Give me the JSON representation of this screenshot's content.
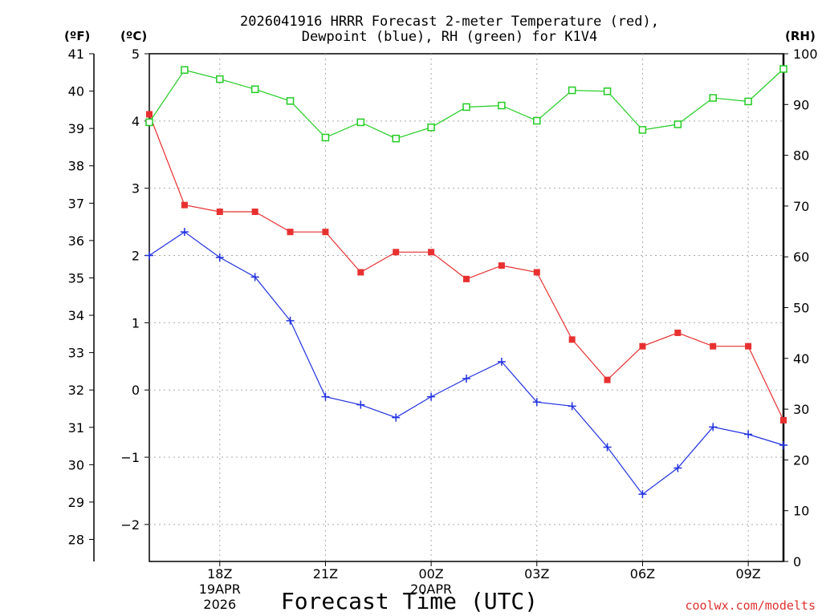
{
  "chart_data": {
    "type": "line",
    "title_line1": "2026041916 HRRR Forecast 2-meter Temperature (red),",
    "title_line2": "Dewpoint (blue), RH (green) for K1V4",
    "left_unit_f": "(ºF)",
    "left_unit_c": "(ºC)",
    "right_unit": "(RH)",
    "xlabel": "Forecast Time (UTC)",
    "credit": "coolwx.com/modelts",
    "x_hours": [
      0,
      1,
      2,
      3,
      4,
      5,
      6,
      7,
      8,
      9,
      10,
      11,
      12,
      13,
      14,
      15,
      16,
      17,
      18
    ],
    "x_ticks": [
      {
        "hour": 2,
        "label": "18Z",
        "sub1": "19APR",
        "sub2": "2026"
      },
      {
        "hour": 5,
        "label": "21Z",
        "sub1": "",
        "sub2": ""
      },
      {
        "hour": 8,
        "label": "00Z",
        "sub1": "20APR",
        "sub2": ""
      },
      {
        "hour": 11,
        "label": "03Z",
        "sub1": "",
        "sub2": ""
      },
      {
        "hour": 14,
        "label": "06Z",
        "sub1": "",
        "sub2": ""
      },
      {
        "hour": 17,
        "label": "09Z",
        "sub1": "",
        "sub2": ""
      }
    ],
    "xlim": [
      0,
      18
    ],
    "celsius_axis": {
      "ylim": [
        -2.55,
        5.0
      ],
      "ticks": [
        5,
        4,
        3,
        2,
        1,
        0,
        -1,
        -2
      ],
      "tick_labels": [
        "5",
        "4",
        "3",
        "2",
        "1",
        "0",
        "−1",
        "−2"
      ]
    },
    "fahrenheit_axis": {
      "ticks": [
        41,
        40,
        39,
        38,
        37,
        36,
        35,
        34,
        33,
        32,
        31,
        30,
        29,
        28
      ]
    },
    "rh_axis": {
      "ylim": [
        0,
        100
      ],
      "ticks": [
        0,
        10,
        20,
        30,
        40,
        50,
        60,
        70,
        80,
        90,
        100
      ]
    },
    "series": [
      {
        "name": "Temperature",
        "units": "C",
        "color": "#e83030",
        "marker": "filled-square",
        "values": [
          4.1,
          2.75,
          2.65,
          2.65,
          2.35,
          2.35,
          1.75,
          2.05,
          2.05,
          1.65,
          1.85,
          1.75,
          0.75,
          0.15,
          0.65,
          0.85,
          0.65,
          0.65,
          -0.45
        ]
      },
      {
        "name": "Dewpoint",
        "units": "C",
        "color": "#2030e0",
        "marker": "plus",
        "values": [
          2.0,
          2.35,
          1.97,
          1.68,
          1.03,
          -0.1,
          -0.22,
          -0.41,
          -0.1,
          0.17,
          0.42,
          -0.18,
          -0.24,
          -0.85,
          -1.55,
          -1.16,
          -0.55,
          -0.66,
          -0.82
        ]
      },
      {
        "name": "RH",
        "units": "%",
        "color": "#22cc22",
        "marker": "open-square",
        "values": [
          86.5,
          96.8,
          95.0,
          93.0,
          90.7,
          83.5,
          86.5,
          83.3,
          85.5,
          89.5,
          89.8,
          86.8,
          92.8,
          92.6,
          85.0,
          86.1,
          91.3,
          90.6,
          97.0
        ]
      }
    ]
  }
}
